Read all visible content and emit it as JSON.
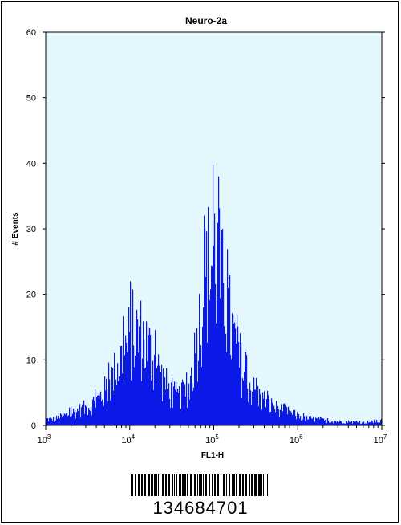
{
  "colors": {
    "plot_bg": "#e4f7fc",
    "histogram": "#0a18e8",
    "axis": "#000000"
  },
  "barcode_text": "134684701",
  "chart_data": {
    "type": "area",
    "title": "Neuro-2a",
    "xlabel": "FL1-H",
    "ylabel": "# Events",
    "x_scale": "log",
    "xlim": [
      1000,
      10000000
    ],
    "ylim": [
      0,
      60
    ],
    "x_ticks": [
      {
        "base": "10",
        "exp": "3",
        "value": 1000
      },
      {
        "base": "10",
        "exp": "4",
        "value": 10000
      },
      {
        "base": "10",
        "exp": "5",
        "value": 100000
      },
      {
        "base": "10",
        "exp": "6",
        "value": 1000000
      },
      {
        "base": "10",
        "exp": "7",
        "value": 10000000
      }
    ],
    "y_ticks": [
      "0",
      "10",
      "20",
      "30",
      "40",
      "50",
      "60"
    ],
    "y_tick_values": [
      0,
      10,
      20,
      30,
      40,
      50,
      60
    ],
    "series": [
      {
        "log10_x": [
          3.0,
          3.1,
          3.2,
          3.3,
          3.4,
          3.5,
          3.6,
          3.7,
          3.8,
          3.9,
          4.0,
          4.1,
          4.2,
          4.3,
          4.4,
          4.5,
          4.6,
          4.7,
          4.8,
          4.9,
          5.0,
          5.1,
          5.2,
          5.3,
          5.4,
          5.5,
          5.6,
          5.7,
          5.8,
          5.9,
          6.0,
          6.1,
          6.2,
          6.3,
          6.4,
          6.5,
          6.6,
          6.7,
          6.8,
          6.9,
          7.0,
          7.1,
          7.2
        ],
        "y": [
          1,
          1,
          1.5,
          2,
          2.5,
          3,
          4,
          5.5,
          8,
          11,
          14,
          15,
          13,
          10,
          7,
          5,
          4.5,
          6,
          14,
          24,
          28,
          22,
          16,
          10,
          7,
          5,
          4,
          3,
          2.5,
          2,
          1.5,
          1.2,
          1,
          0.8,
          0.7,
          0.6,
          0.6,
          0.5,
          0.5,
          0.6,
          0.7,
          0.8,
          0.8
        ],
        "peaks": [
          {
            "log10_x": 4.0,
            "y": 22
          },
          {
            "log10_x": 5.05,
            "y": 38
          }
        ]
      }
    ]
  }
}
